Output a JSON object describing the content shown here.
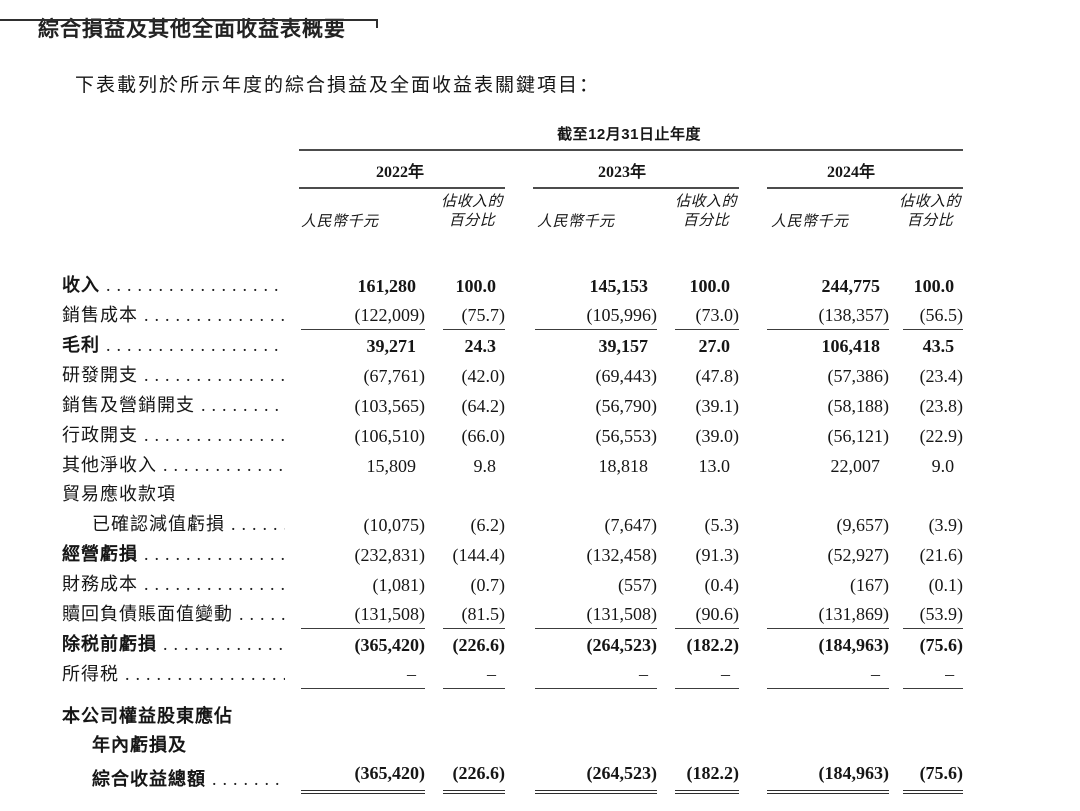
{
  "page": {
    "title": "綜合損益及其他全面收益表概要",
    "intro": "下表載列於所示年度的綜合損益及全面收益表關鍵項目："
  },
  "table": {
    "period_header": "截至12月31日止年度",
    "years": [
      "2022年",
      "2023年",
      "2024年"
    ],
    "col_headers": {
      "amount": "人民幣千元",
      "pct_line1": "佔收入的",
      "pct_line2": "百分比"
    },
    "rows": [
      {
        "label": "收入",
        "values": [
          "161,280",
          "100.0",
          "145,153",
          "100.0",
          "244,775",
          "100.0"
        ]
      },
      {
        "label": "銷售成本",
        "values": [
          "(122,009)",
          "(75.7)",
          "(105,996)",
          "(73.0)",
          "(138,357)",
          "(56.5)"
        ]
      },
      {
        "label": "毛利",
        "values": [
          "39,271",
          "24.3",
          "39,157",
          "27.0",
          "106,418",
          "43.5"
        ]
      },
      {
        "label": "研發開支",
        "values": [
          "(67,761)",
          "(42.0)",
          "(69,443)",
          "(47.8)",
          "(57,386)",
          "(23.4)"
        ]
      },
      {
        "label": "銷售及營銷開支",
        "values": [
          "(103,565)",
          "(64.2)",
          "(56,790)",
          "(39.1)",
          "(58,188)",
          "(23.8)"
        ]
      },
      {
        "label": "行政開支",
        "values": [
          "(106,510)",
          "(66.0)",
          "(56,553)",
          "(39.0)",
          "(56,121)",
          "(22.9)"
        ]
      },
      {
        "label": "其他淨收入",
        "values": [
          "15,809",
          "9.8",
          "18,818",
          "13.0",
          "22,007",
          "9.0"
        ]
      },
      {
        "label": "貿易應收款項"
      },
      {
        "label": "已確認減值虧損",
        "values": [
          "(10,075)",
          "(6.2)",
          "(7,647)",
          "(5.3)",
          "(9,657)",
          "(3.9)"
        ]
      },
      {
        "label": "經營虧損",
        "values": [
          "(232,831)",
          "(144.4)",
          "(132,458)",
          "(91.3)",
          "(52,927)",
          "(21.6)"
        ]
      },
      {
        "label": "財務成本",
        "values": [
          "(1,081)",
          "(0.7)",
          "(557)",
          "(0.4)",
          "(167)",
          "(0.1)"
        ]
      },
      {
        "label": "贖回負債賬面值變動",
        "values": [
          "(131,508)",
          "(81.5)",
          "(131,508)",
          "(90.6)",
          "(131,869)",
          "(53.9)"
        ]
      },
      {
        "label": "除税前虧損",
        "values": [
          "(365,420)",
          "(226.6)",
          "(264,523)",
          "(182.2)",
          "(184,963)",
          "(75.6)"
        ]
      },
      {
        "label": "所得税",
        "values": [
          "–",
          "–",
          "–",
          "–",
          "–",
          "–"
        ]
      },
      {
        "label": "本公司權益股東應佔"
      },
      {
        "label": "年內虧損及"
      },
      {
        "label": "綜合收益總額",
        "values": [
          "(365,420)",
          "(226.6)",
          "(264,523)",
          "(182.2)",
          "(184,963)",
          "(75.6)"
        ]
      }
    ]
  }
}
